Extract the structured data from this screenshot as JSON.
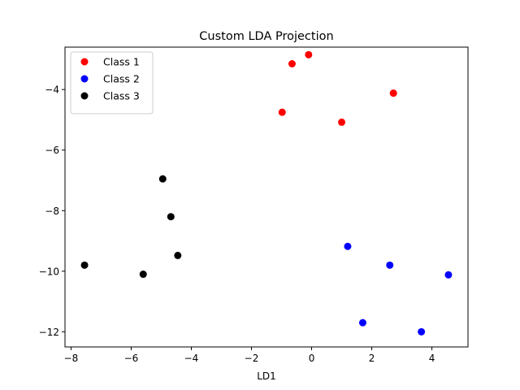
{
  "chart_data": {
    "type": "scatter",
    "title": "Custom LDA Projection",
    "xlabel": "LD1",
    "ylabel": "",
    "xlim": [
      -8.2,
      5.2
    ],
    "ylim": [
      -12.5,
      -2.6
    ],
    "xticks": [
      -8,
      -6,
      -4,
      -2,
      0,
      2,
      4
    ],
    "yticks": [
      -12,
      -10,
      -8,
      -6,
      -4
    ],
    "grid": false,
    "legend_position": "top-left",
    "series": [
      {
        "name": "Class 1",
        "color": "#ff0000",
        "points": [
          [
            -0.1,
            -2.85
          ],
          [
            -0.65,
            -3.15
          ],
          [
            -0.98,
            -4.75
          ],
          [
            2.72,
            -4.12
          ],
          [
            1.0,
            -5.08
          ]
        ]
      },
      {
        "name": "Class 2",
        "color": "#0000ff",
        "points": [
          [
            1.2,
            -9.18
          ],
          [
            2.6,
            -9.8
          ],
          [
            4.55,
            -10.12
          ],
          [
            1.7,
            -11.7
          ],
          [
            3.65,
            -12.0
          ]
        ]
      },
      {
        "name": "Class 3",
        "color": "#000000",
        "points": [
          [
            -4.95,
            -6.95
          ],
          [
            -4.68,
            -8.2
          ],
          [
            -4.45,
            -9.48
          ],
          [
            -7.55,
            -9.8
          ],
          [
            -5.6,
            -10.1
          ]
        ]
      }
    ]
  }
}
